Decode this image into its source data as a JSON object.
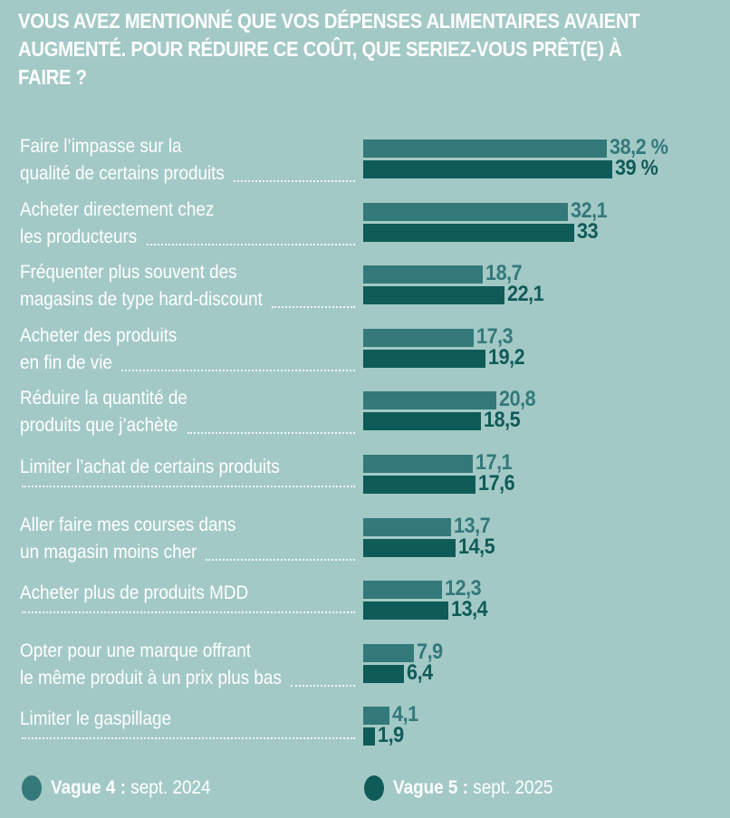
{
  "chart_data": {
    "type": "bar",
    "orientation": "horizontal",
    "title": "VOUS AVEZ MENTIONNÉ QUE VOS DÉPENSES ALIMENTAIRES AVAIENT AUGMENTÉ. POUR RÉDUIRE CE COÛT, QUE SERIEZ-VOUS PRÊT(E) À FAIRE ?",
    "xlabel": "",
    "ylabel": "",
    "unit": "%",
    "xlim": [
      0,
      40
    ],
    "grid": false,
    "legend_position": "bottom",
    "categories": [
      [
        "Faire l’impasse sur la",
        "qualité de certains produits"
      ],
      [
        "Acheter directement chez",
        "les producteurs"
      ],
      [
        "Fréquenter plus souvent des",
        "magasins de type hard-discount"
      ],
      [
        "Acheter des produits",
        "en fin de vie"
      ],
      [
        "Réduire la quantité de",
        "produits que j’achète"
      ],
      [
        "Limiter l’achat de certains produits"
      ],
      [
        "Aller faire mes courses dans",
        "un magasin moins cher"
      ],
      [
        "Acheter plus de produits MDD"
      ],
      [
        "Opter pour une marque offrant",
        "le même produit à un prix plus bas"
      ],
      [
        "Limiter le gaspillage"
      ]
    ],
    "series": [
      {
        "name": "Vague 4",
        "date": "sept. 2024",
        "color": "#33797a",
        "values": [
          38.2,
          32.1,
          18.7,
          17.3,
          20.8,
          17.1,
          13.7,
          12.3,
          7.9,
          4.1
        ],
        "labels": [
          "38,2 %",
          "32,1",
          "18,7",
          "17,3",
          "20,8",
          "17,1",
          "13,7",
          "12,3",
          "7,9",
          "4,1"
        ]
      },
      {
        "name": "Vague 5",
        "date": "sept. 2025",
        "color": "#0f5b58",
        "values": [
          39,
          33,
          22.1,
          19.2,
          18.5,
          17.6,
          14.5,
          13.4,
          6.4,
          1.9
        ],
        "labels": [
          "39 %",
          "33",
          "22,1",
          "19,2",
          "18,5",
          "17,6",
          "14,5",
          "13,4",
          "6,4",
          "1,9"
        ]
      }
    ]
  },
  "legend": [
    {
      "name": "Vague 4",
      "sep": " : ",
      "date": "sept. 2024",
      "color": "#33797a"
    },
    {
      "name": "Vague 5",
      "sep": " : ",
      "date": "sept. 2025",
      "color": "#0f5b58"
    }
  ]
}
